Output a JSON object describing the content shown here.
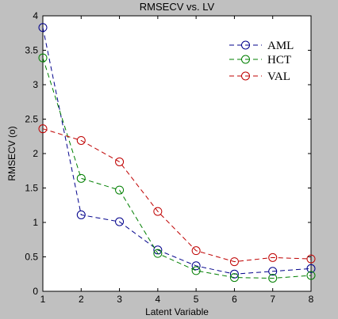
{
  "chart_data": {
    "type": "line",
    "title": "RMSECV vs. LV",
    "xlabel": "Latent Variable",
    "ylabel": "RMSECV (o)",
    "xlim": [
      1,
      8
    ],
    "ylim": [
      0,
      4
    ],
    "x": [
      1,
      2,
      3,
      4,
      5,
      6,
      7,
      8
    ],
    "x_ticks": [
      "1",
      "2",
      "3",
      "4",
      "5",
      "6",
      "7",
      "8"
    ],
    "y_ticks": [
      "0",
      "0.5",
      "1",
      "1.5",
      "2",
      "2.5",
      "3",
      "3.5",
      "4"
    ],
    "grid": false,
    "legend_position": "top-right",
    "series": [
      {
        "name": "AML",
        "color": "#00008b",
        "line_style": "dashed",
        "marker": "circle",
        "values": [
          3.83,
          1.11,
          1.01,
          0.6,
          0.37,
          0.25,
          0.29,
          0.33
        ]
      },
      {
        "name": "HCT",
        "color": "#007f00",
        "line_style": "dashed",
        "marker": "circle",
        "values": [
          3.39,
          1.64,
          1.47,
          0.55,
          0.3,
          0.2,
          0.19,
          0.23
        ]
      },
      {
        "name": "VAL",
        "color": "#bf0000",
        "line_style": "dashed",
        "marker": "circle",
        "values": [
          2.36,
          2.19,
          1.88,
          1.16,
          0.59,
          0.43,
          0.49,
          0.47
        ]
      }
    ]
  }
}
